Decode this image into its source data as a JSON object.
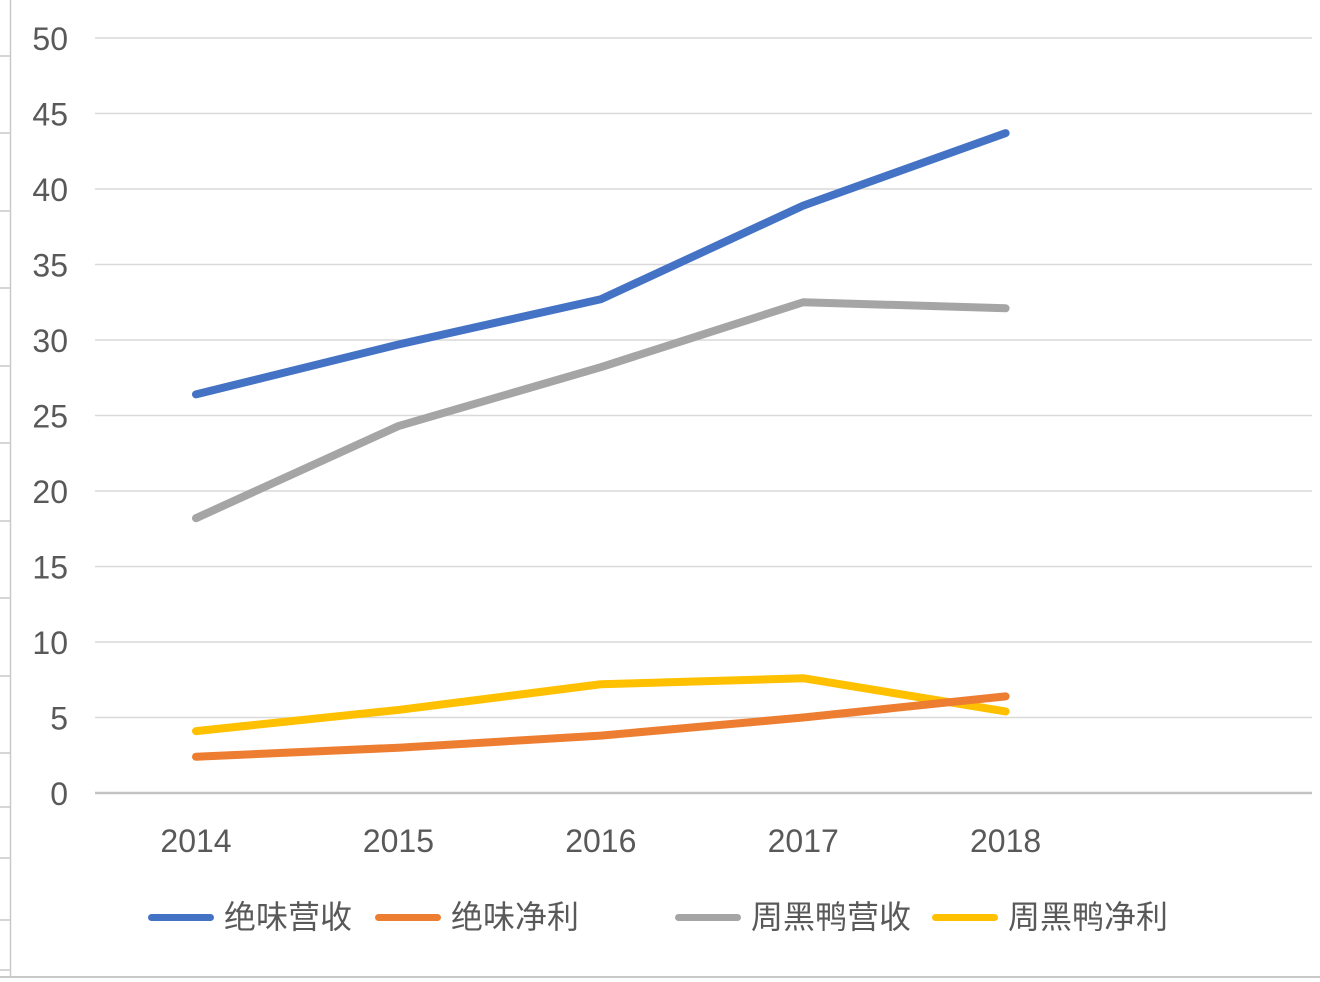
{
  "chart_data": {
    "type": "line",
    "categories": [
      "2014",
      "2015",
      "2016",
      "2017",
      "2018"
    ],
    "series": [
      {
        "name": "绝味营收",
        "color": "#4472C4",
        "values": [
          26.4,
          29.7,
          32.7,
          38.9,
          43.7
        ]
      },
      {
        "name": "绝味净利",
        "color": "#ED7D31",
        "values": [
          2.4,
          3.0,
          3.8,
          5.0,
          6.4
        ]
      },
      {
        "name": "周黑鸭营收",
        "color": "#A5A5A5",
        "values": [
          18.2,
          24.3,
          28.2,
          32.5,
          32.1
        ]
      },
      {
        "name": "周黑鸭净利",
        "color": "#FFC000",
        "values": [
          4.1,
          5.5,
          7.2,
          7.6,
          5.4
        ]
      }
    ],
    "xlabel": "",
    "ylabel": "",
    "ylim": [
      0,
      50
    ],
    "yticks": [
      0,
      5,
      10,
      15,
      20,
      25,
      30,
      35,
      40,
      45,
      50
    ],
    "grid": true,
    "legend_position": "bottom",
    "colors": {
      "tick_label": "#595959",
      "gridline": "#D9D9D9",
      "axis_line": "#C3C3C3",
      "frame": "#C9C9C9",
      "background": "#FFFFFF"
    }
  }
}
